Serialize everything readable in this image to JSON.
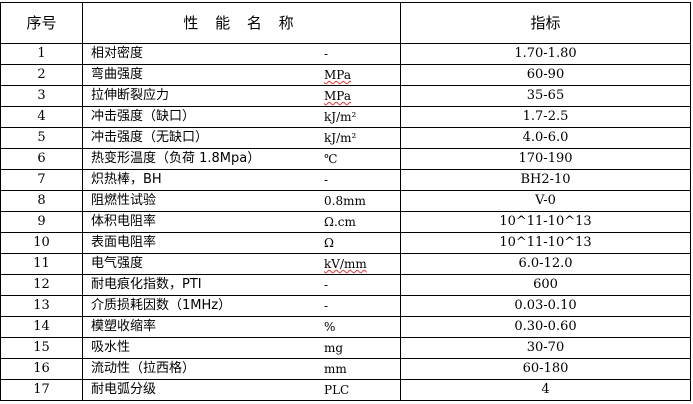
{
  "header": {
    "no": "序号",
    "name": "性 能 名 称",
    "indicator": "指标"
  },
  "rows": [
    {
      "no": "1",
      "name": "相对密度",
      "unit": "-",
      "indicator": "1.70-1.80"
    },
    {
      "no": "2",
      "name": "弯曲强度",
      "unit": "MPa",
      "unit_spellcheck": true,
      "indicator": "60-90"
    },
    {
      "no": "3",
      "name": "拉伸断裂应力",
      "unit": "MPa",
      "unit_spellcheck": true,
      "indicator": "35-65"
    },
    {
      "no": "4",
      "name": "冲击强度（缺口）",
      "unit": "kJ/m²",
      "indicator": "1.7-2.5"
    },
    {
      "no": "5",
      "name": "冲击强度（无缺口）",
      "unit": "kJ/m²",
      "indicator": "4.0-6.0"
    },
    {
      "no": "6",
      "name": "热变形温度（负荷 1.8Mpa）",
      "unit": "℃",
      "indicator": "170-190"
    },
    {
      "no": "7",
      "name": "炽热棒，BH",
      "unit": "-",
      "indicator": "BH2-10"
    },
    {
      "no": "8",
      "name": "阻燃性试验",
      "unit": "0.8mm",
      "indicator": "V-0"
    },
    {
      "no": "9",
      "name": "体积电阻率",
      "unit": "Ω.cm",
      "indicator": "10^11-10^13",
      "indicator_parts": [
        {
          "t": "10"
        },
        {
          "t": "11",
          "sup": true
        },
        {
          "t": "-10"
        },
        {
          "t": "13",
          "sup": true
        }
      ]
    },
    {
      "no": "10",
      "name": "表面电阻率",
      "unit": "Ω",
      "indicator": "10^11-10^13",
      "indicator_parts": [
        {
          "t": "10"
        },
        {
          "t": "11",
          "sup": true
        },
        {
          "t": "-10"
        },
        {
          "t": "13",
          "sup": true
        }
      ]
    },
    {
      "no": "11",
      "name": "电气强度",
      "unit": "kV/mm",
      "unit_spellcheck": true,
      "indicator": "6.0-12.0"
    },
    {
      "no": "12",
      "name": "耐电痕化指数，PTI",
      "unit": "-",
      "indicator": "600"
    },
    {
      "no": "13",
      "name": "介质损耗因数（1MHz）",
      "unit": "-",
      "indicator": "0.03-0.10"
    },
    {
      "no": "14",
      "name": "模塑收缩率",
      "unit": "%",
      "indicator": "0.30-0.60"
    },
    {
      "no": "15",
      "name": "吸水性",
      "unit": "mg",
      "indicator": "30-70"
    },
    {
      "no": "16",
      "name": "流动性（拉西格）",
      "unit": "mm",
      "indicator": "60-180"
    },
    {
      "no": "17",
      "name": "耐电弧分级",
      "unit": "PLC",
      "indicator": "4"
    }
  ]
}
